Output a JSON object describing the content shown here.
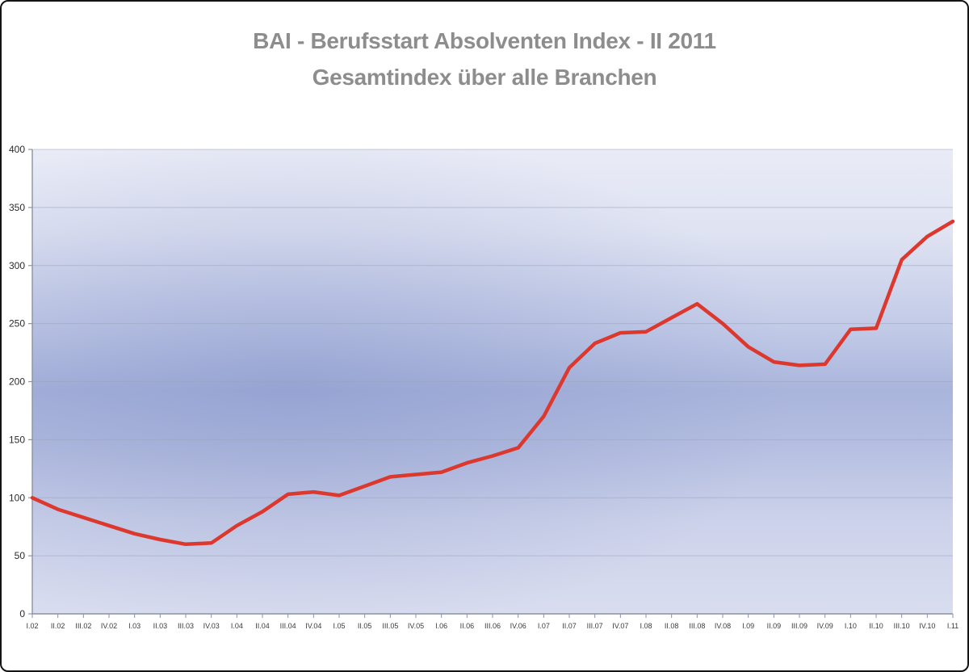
{
  "window": {
    "background": "#ffffff",
    "border_color": "#141414"
  },
  "chart_data": {
    "type": "line",
    "title": "BAI - Berufsstart Absolventen Index - II 2011",
    "subtitle": "Gesamtindex über alle Branchen",
    "legend_position": "none",
    "grid": true,
    "xlabel": "",
    "ylabel": "",
    "ylim": [
      0,
      400
    ],
    "ytick_step": 50,
    "yticks": [
      0,
      50,
      100,
      150,
      200,
      250,
      300,
      350,
      400
    ],
    "categories": [
      "I.02",
      "II.02",
      "III.02",
      "IV.02",
      "I.03",
      "II.03",
      "III.03",
      "IV.03",
      "I.04",
      "II.04",
      "III.04",
      "IV.04",
      "I.05",
      "II.05",
      "III.05",
      "IV.05",
      "I.06",
      "II.06",
      "III.06",
      "IV.06",
      "I.07",
      "II.07",
      "III.07",
      "IV.07",
      "I.08",
      "II.08",
      "III.08",
      "IV.08",
      "I.09",
      "II.09",
      "III.09",
      "IV.09",
      "I.10",
      "II.10",
      "III.10",
      "IV.10",
      "I.11"
    ],
    "values": [
      100,
      90,
      83,
      76,
      69,
      64,
      60,
      61,
      76,
      88,
      103,
      105,
      102,
      110,
      118,
      120,
      122,
      130,
      136,
      143,
      170,
      212,
      233,
      242,
      243,
      255,
      267,
      250,
      230,
      217,
      214,
      215,
      245,
      246,
      305,
      325,
      338
    ],
    "colors": {
      "line": "#dc382e",
      "title_text": "#8d8d8d",
      "axis": "#8b92a6",
      "grid": "#9aa3bd",
      "x_tick_label": "#3a3a3a",
      "y_tick_label": "#2b2b2b",
      "plot_gradient": [
        "#e9ebf6",
        "#dfe3f2",
        "#bfc8e6",
        "#aab5dc",
        "#b3bde0",
        "#ccd2ea",
        "#d9ddef"
      ]
    }
  }
}
